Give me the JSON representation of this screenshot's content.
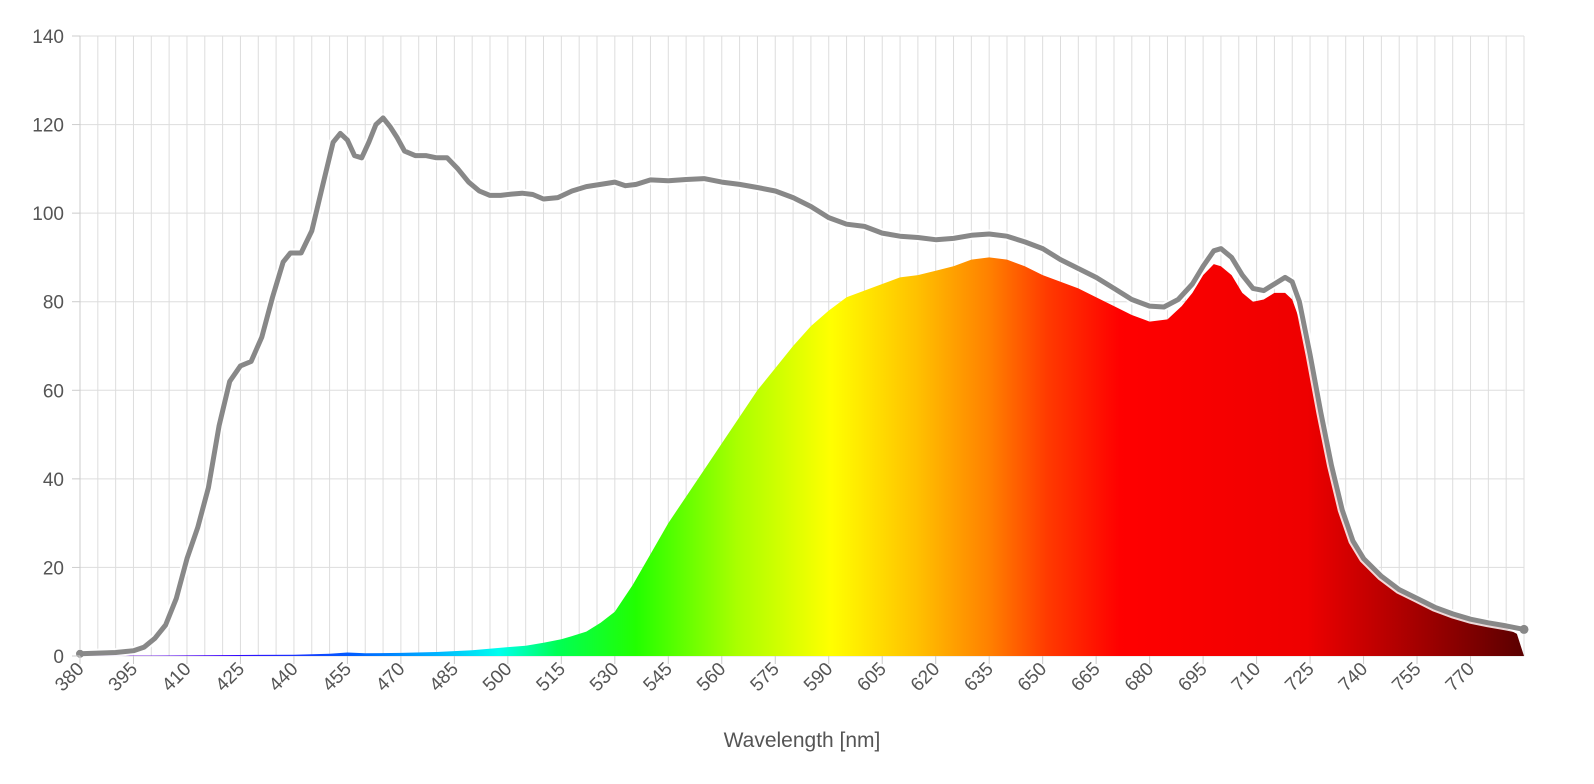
{
  "chart_data": {
    "type": "area",
    "title": "",
    "xlabel": "Wavelength [nm]",
    "ylabel": "",
    "xlim": [
      380,
      785
    ],
    "ylim": [
      0,
      140
    ],
    "grid": true,
    "legend": "none",
    "x_ticks": [
      380,
      395,
      410,
      425,
      440,
      455,
      470,
      485,
      500,
      515,
      530,
      545,
      560,
      575,
      590,
      605,
      620,
      635,
      650,
      665,
      680,
      695,
      710,
      725,
      740,
      755,
      770
    ],
    "y_ticks": [
      0,
      20,
      40,
      60,
      80,
      100,
      120,
      140
    ],
    "series": [
      {
        "style": "line",
        "color": "#888888",
        "points": [
          [
            380,
            0.5
          ],
          [
            390,
            0.8
          ],
          [
            395,
            1.2
          ],
          [
            398,
            2
          ],
          [
            401,
            4
          ],
          [
            404,
            7
          ],
          [
            407,
            13
          ],
          [
            410,
            22
          ],
          [
            413,
            29
          ],
          [
            416,
            38
          ],
          [
            419,
            52
          ],
          [
            422,
            62
          ],
          [
            425,
            65.5
          ],
          [
            428,
            66.5
          ],
          [
            431,
            72
          ],
          [
            434,
            81
          ],
          [
            437,
            89
          ],
          [
            439,
            91
          ],
          [
            442,
            91
          ],
          [
            445,
            96
          ],
          [
            448,
            106
          ],
          [
            451,
            116
          ],
          [
            453,
            118
          ],
          [
            455,
            116.5
          ],
          [
            457,
            113
          ],
          [
            459,
            112.5
          ],
          [
            461,
            116
          ],
          [
            463,
            120
          ],
          [
            465,
            121.5
          ],
          [
            467,
            119.5
          ],
          [
            469,
            117
          ],
          [
            471,
            114
          ],
          [
            474,
            113
          ],
          [
            477,
            113
          ],
          [
            480,
            112.5
          ],
          [
            483,
            112.5
          ],
          [
            486,
            110
          ],
          [
            489,
            107
          ],
          [
            492,
            105
          ],
          [
            495,
            104
          ],
          [
            498,
            104
          ],
          [
            501,
            104.3
          ],
          [
            504,
            104.5
          ],
          [
            507,
            104.2
          ],
          [
            510,
            103.2
          ],
          [
            514,
            103.5
          ],
          [
            518,
            105
          ],
          [
            522,
            106
          ],
          [
            526,
            106.5
          ],
          [
            530,
            107
          ],
          [
            533,
            106.2
          ],
          [
            536,
            106.5
          ],
          [
            540,
            107.5
          ],
          [
            545,
            107.3
          ],
          [
            550,
            107.6
          ],
          [
            555,
            107.8
          ],
          [
            560,
            107
          ],
          [
            565,
            106.5
          ],
          [
            570,
            105.8
          ],
          [
            575,
            105
          ],
          [
            580,
            103.5
          ],
          [
            585,
            101.5
          ],
          [
            590,
            99
          ],
          [
            595,
            97.5
          ],
          [
            600,
            97
          ],
          [
            605,
            95.5
          ],
          [
            610,
            94.8
          ],
          [
            615,
            94.5
          ],
          [
            620,
            94
          ],
          [
            625,
            94.3
          ],
          [
            630,
            95
          ],
          [
            635,
            95.3
          ],
          [
            640,
            94.8
          ],
          [
            645,
            93.5
          ],
          [
            650,
            92
          ],
          [
            655,
            89.5
          ],
          [
            660,
            87.5
          ],
          [
            665,
            85.5
          ],
          [
            670,
            83
          ],
          [
            675,
            80.5
          ],
          [
            680,
            79
          ],
          [
            684,
            78.8
          ],
          [
            688,
            80.5
          ],
          [
            692,
            84
          ],
          [
            695,
            88
          ],
          [
            698,
            91.5
          ],
          [
            700,
            92
          ],
          [
            703,
            90
          ],
          [
            706,
            86
          ],
          [
            709,
            83
          ],
          [
            712,
            82.5
          ],
          [
            715,
            84
          ],
          [
            718,
            85.5
          ],
          [
            720,
            84.5
          ],
          [
            722,
            80
          ],
          [
            725,
            68
          ],
          [
            728,
            55
          ],
          [
            731,
            43
          ],
          [
            734,
            33
          ],
          [
            737,
            26
          ],
          [
            740,
            22
          ],
          [
            745,
            18
          ],
          [
            750,
            15
          ],
          [
            755,
            13
          ],
          [
            760,
            11
          ],
          [
            765,
            9.5
          ],
          [
            770,
            8.3
          ],
          [
            775,
            7.5
          ],
          [
            780,
            6.8
          ],
          [
            785,
            6
          ]
        ]
      },
      {
        "style": "spectral-area",
        "points": [
          [
            380,
            0.1
          ],
          [
            400,
            0.1
          ],
          [
            420,
            0.2
          ],
          [
            440,
            0.3
          ],
          [
            450,
            0.5
          ],
          [
            455,
            0.8
          ],
          [
            460,
            0.6
          ],
          [
            470,
            0.7
          ],
          [
            480,
            0.9
          ],
          [
            490,
            1.3
          ],
          [
            500,
            2
          ],
          [
            505,
            2.3
          ],
          [
            510,
            3
          ],
          [
            515,
            3.8
          ],
          [
            518,
            4.5
          ],
          [
            522,
            5.5
          ],
          [
            526,
            7.5
          ],
          [
            530,
            10
          ],
          [
            535,
            16
          ],
          [
            540,
            23
          ],
          [
            545,
            30
          ],
          [
            550,
            36
          ],
          [
            555,
            42
          ],
          [
            560,
            48
          ],
          [
            565,
            54
          ],
          [
            570,
            60
          ],
          [
            575,
            65
          ],
          [
            580,
            70
          ],
          [
            585,
            74.5
          ],
          [
            590,
            78
          ],
          [
            595,
            81
          ],
          [
            600,
            82.5
          ],
          [
            605,
            84
          ],
          [
            610,
            85.5
          ],
          [
            615,
            86
          ],
          [
            620,
            87
          ],
          [
            625,
            88
          ],
          [
            630,
            89.5
          ],
          [
            635,
            90
          ],
          [
            640,
            89.5
          ],
          [
            645,
            88
          ],
          [
            650,
            86
          ],
          [
            655,
            84.5
          ],
          [
            660,
            83
          ],
          [
            665,
            81
          ],
          [
            670,
            79
          ],
          [
            675,
            77
          ],
          [
            680,
            75.5
          ],
          [
            685,
            76
          ],
          [
            689,
            79
          ],
          [
            692,
            82
          ],
          [
            695,
            86
          ],
          [
            698,
            88.5
          ],
          [
            700,
            88
          ],
          [
            703,
            86
          ],
          [
            706,
            82
          ],
          [
            709,
            80
          ],
          [
            712,
            80.5
          ],
          [
            715,
            82
          ],
          [
            718,
            82
          ],
          [
            720,
            80.5
          ],
          [
            722,
            76
          ],
          [
            725,
            65
          ],
          [
            728,
            53
          ],
          [
            731,
            42
          ],
          [
            734,
            33
          ],
          [
            737,
            26
          ],
          [
            740,
            22
          ],
          [
            745,
            18
          ],
          [
            750,
            15
          ],
          [
            755,
            13
          ],
          [
            760,
            11
          ],
          [
            765,
            9.5
          ],
          [
            770,
            8.2
          ],
          [
            775,
            7.3
          ],
          [
            780,
            6.3
          ],
          [
            783,
            5
          ],
          [
            785,
            0
          ]
        ]
      }
    ]
  }
}
